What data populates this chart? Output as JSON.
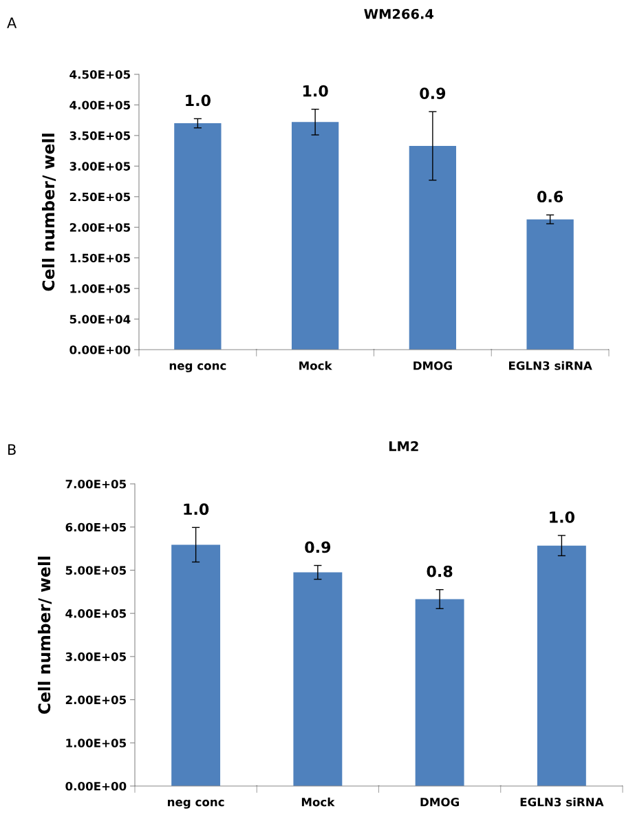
{
  "chart_data": [
    {
      "type": "bar",
      "title": "WM266.4",
      "ylabel": "Cell number/ well",
      "annotations": [
        "A",
        {
          "text": "1.0",
          "x": "neg conc",
          "y": 377500
        },
        {
          "text": "1.0",
          "x": "Mock",
          "y": 393000
        },
        {
          "text": "0.9",
          "x": "DMOG",
          "y": 389000
        },
        {
          "text": "0.6",
          "x": "EGLN3 siRNA",
          "y": 220200
        }
      ],
      "categories": [
        "neg conc",
        "Mock",
        "DMOG",
        "EGLN3 siRNA"
      ],
      "values": [
        370000,
        372000,
        333000,
        213000
      ],
      "errors": [
        7500,
        21000,
        56000,
        7200
      ],
      "color": "#4f81bd",
      "ylim": [
        0,
        450000
      ],
      "yticks": [
        {
          "value": 0,
          "label": "0.00E+00"
        },
        {
          "value": 50000,
          "label": "5.00E+04"
        },
        {
          "value": 100000,
          "label": "1.00E+05"
        },
        {
          "value": 150000,
          "label": "1.50E+05"
        },
        {
          "value": 200000,
          "label": "2.00E+05"
        },
        {
          "value": 250000,
          "label": "2.50E+05"
        },
        {
          "value": 300000,
          "label": "3.00E+05"
        },
        {
          "value": 350000,
          "label": "3.50E+05"
        },
        {
          "value": 400000,
          "label": "4.00E+05"
        },
        {
          "value": 450000,
          "label": "4.50E+05"
        }
      ],
      "grid": false,
      "legend": false
    },
    {
      "type": "bar",
      "title": "LM2",
      "ylabel": "Cell number/ well",
      "annotations": [
        "B",
        {
          "text": "1.0",
          "x": "neg conc",
          "y": 599000
        },
        {
          "text": "0.9",
          "x": "Mock",
          "y": 511000
        },
        {
          "text": "0.8",
          "x": "DMOG",
          "y": 455000
        },
        {
          "text": "1.0",
          "x": "EGLN3 siRNA",
          "y": 580500
        }
      ],
      "categories": [
        "neg conc",
        "Mock",
        "DMOG",
        "EGLN3 siRNA"
      ],
      "values": [
        559000,
        495000,
        433000,
        557000
      ],
      "errors": [
        40000,
        16000,
        22000,
        23500
      ],
      "color": "#4f81bd",
      "ylim": [
        0,
        700000
      ],
      "yticks": [
        {
          "value": 0,
          "label": "0.00E+00"
        },
        {
          "value": 100000,
          "label": "1.00E+05"
        },
        {
          "value": 200000,
          "label": "2.00E+05"
        },
        {
          "value": 300000,
          "label": "3.00E+05"
        },
        {
          "value": 400000,
          "label": "4.00E+05"
        },
        {
          "value": 500000,
          "label": "5.00E+05"
        },
        {
          "value": 600000,
          "label": "6.00E+05"
        },
        {
          "value": 700000,
          "label": "7.00E+05"
        }
      ],
      "grid": false,
      "legend": false
    }
  ]
}
